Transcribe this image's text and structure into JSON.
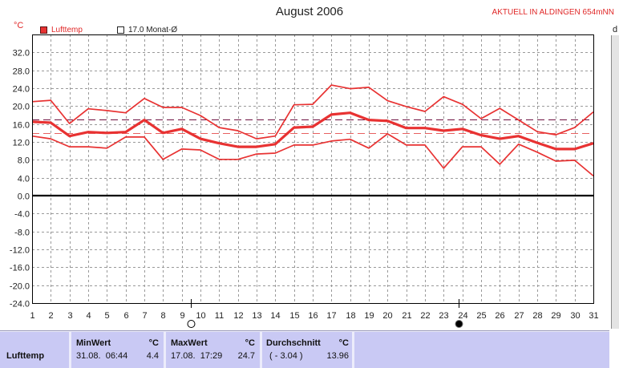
{
  "header": {
    "station": "AKTUELL IN ALDINGEN 654mNN",
    "edge_text": "d"
  },
  "legend": [
    {
      "label": "Lufttemp",
      "color": "#e83232",
      "icon": "filled-square-icon"
    },
    {
      "label": "17.0 Monat-Ø",
      "color": "#222222",
      "icon": "empty-square-icon"
    }
  ],
  "chart_data": {
    "type": "line",
    "title": "August 2006",
    "ylabel": "°C",
    "xlabel": "",
    "grid": true,
    "legend_position": "top-left",
    "x": [
      1,
      2,
      3,
      4,
      5,
      6,
      7,
      8,
      9,
      10,
      11,
      12,
      13,
      14,
      15,
      16,
      17,
      18,
      19,
      20,
      21,
      22,
      23,
      24,
      25,
      26,
      27,
      28,
      29,
      30,
      31
    ],
    "xticks": [
      "1",
      "2",
      "3",
      "4",
      "5",
      "6",
      "7",
      "8",
      "9",
      "10",
      "11",
      "12",
      "13",
      "14",
      "15",
      "16",
      "17",
      "18",
      "19",
      "20",
      "21",
      "22",
      "23",
      "24",
      "25",
      "26",
      "27",
      "28",
      "29",
      "30",
      "31"
    ],
    "xlim": [
      1,
      31
    ],
    "ylim": [
      -24,
      36
    ],
    "yticks": [
      32,
      28,
      24,
      20,
      16,
      12,
      8,
      4,
      0,
      -4,
      -8,
      -12,
      -16,
      -20,
      -24
    ],
    "ytick_labels": [
      "32.0",
      "28.0",
      "24.0",
      "20.0",
      "16.0",
      "12.0",
      "8.0",
      "4.0",
      "0.0",
      "-4.0",
      "-8.0",
      "-12.0",
      "-16.0",
      "-20.0",
      "-24.0"
    ],
    "series": [
      {
        "color": "#e83232",
        "values": [
          21.0,
          21.3,
          16.1,
          19.4,
          19.0,
          18.5,
          21.7,
          19.7,
          19.7,
          17.9,
          15.2,
          14.5,
          12.7,
          13.3,
          20.3,
          20.4,
          24.7,
          23.9,
          24.2,
          21.2,
          19.9,
          18.8,
          22.1,
          20.4,
          17.2,
          19.5,
          16.9,
          14.3,
          13.6,
          15.2,
          18.7
        ]
      },
      {
        "color": "#e83232",
        "values": [
          16.5,
          16.3,
          13.3,
          14.2,
          14.0,
          14.2,
          16.9,
          14.0,
          14.9,
          12.7,
          11.7,
          10.9,
          10.9,
          11.5,
          15.2,
          15.4,
          18.1,
          18.5,
          16.9,
          16.7,
          15.1,
          15.1,
          14.5,
          14.9,
          13.5,
          12.7,
          13.3,
          11.8,
          10.4,
          10.4,
          11.7
        ]
      },
      {
        "color": "#e83232",
        "values": [
          13.3,
          12.7,
          10.9,
          10.9,
          10.6,
          13.1,
          13.1,
          8.1,
          10.4,
          10.2,
          8.1,
          8.1,
          9.3,
          9.5,
          11.3,
          11.3,
          12.2,
          12.6,
          10.6,
          13.8,
          11.3,
          11.3,
          6.1,
          10.9,
          10.9,
          7.0,
          11.5,
          9.7,
          7.7,
          7.9,
          4.4
        ]
      }
    ],
    "reference_lines": [
      {
        "value": 17.0,
        "color": "#6e1040"
      },
      {
        "value": 13.96,
        "color": "#e86060"
      }
    ],
    "zero_line": {
      "value": 0,
      "color": "#000000"
    },
    "moon_phases": [
      {
        "icon": "full-moon-icon",
        "day": 9.5
      },
      {
        "icon": "new-moon-icon",
        "day": 23.8
      }
    ]
  },
  "stats": {
    "columns": [
      {
        "title": "MinWert",
        "unit": "°C"
      },
      {
        "title": "MaxWert",
        "unit": "°C"
      },
      {
        "title": "Durchschnitt",
        "unit": "°C"
      }
    ],
    "rows": [
      {
        "label": "Lufttemp",
        "cells": [
          {
            "detail": "31.08.  06:44",
            "value": "4.4"
          },
          {
            "detail": "17.08.  17:29",
            "value": "24.7"
          },
          {
            "detail": "( - 3.04 )",
            "value": "13.96"
          }
        ]
      }
    ]
  }
}
